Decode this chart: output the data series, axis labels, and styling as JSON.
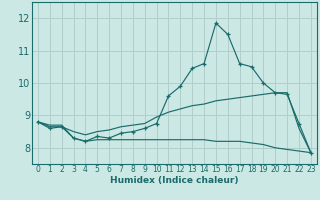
{
  "xlabel": "Humidex (Indice chaleur)",
  "background_color": "#cce8e4",
  "grid_color": "#b0cfcc",
  "line_color": "#1a6b6b",
  "x_values": [
    0,
    1,
    2,
    3,
    4,
    5,
    6,
    7,
    8,
    9,
    10,
    11,
    12,
    13,
    14,
    15,
    16,
    17,
    18,
    19,
    20,
    21,
    22,
    23
  ],
  "line1": [
    8.8,
    8.6,
    8.65,
    8.3,
    8.2,
    8.35,
    8.3,
    8.45,
    8.5,
    8.6,
    8.75,
    9.6,
    9.9,
    10.45,
    10.6,
    11.85,
    11.5,
    10.6,
    10.5,
    10.0,
    9.7,
    9.65,
    8.75,
    7.85
  ],
  "line2": [
    8.8,
    8.65,
    8.65,
    8.5,
    8.4,
    8.5,
    8.55,
    8.65,
    8.7,
    8.75,
    8.95,
    9.1,
    9.2,
    9.3,
    9.35,
    9.45,
    9.5,
    9.55,
    9.6,
    9.65,
    9.7,
    9.7,
    8.6,
    7.85
  ],
  "line3": [
    8.8,
    8.7,
    8.7,
    8.3,
    8.2,
    8.25,
    8.25,
    8.25,
    8.25,
    8.25,
    8.25,
    8.25,
    8.25,
    8.25,
    8.25,
    8.2,
    8.2,
    8.2,
    8.15,
    8.1,
    8.0,
    7.95,
    7.9,
    7.85
  ],
  "ylim": [
    7.5,
    12.5
  ],
  "xlim": [
    -0.5,
    23.5
  ],
  "yticks": [
    8,
    9,
    10,
    11,
    12
  ],
  "xticks": [
    0,
    1,
    2,
    3,
    4,
    5,
    6,
    7,
    8,
    9,
    10,
    11,
    12,
    13,
    14,
    15,
    16,
    17,
    18,
    19,
    20,
    21,
    22,
    23
  ]
}
